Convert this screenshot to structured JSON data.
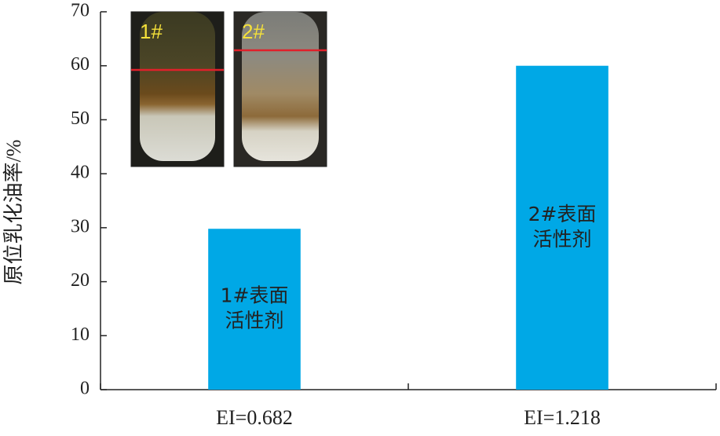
{
  "chart_data": {
    "type": "bar",
    "y_label": "原位乳化油率/%",
    "categories": [
      "EI=0.682",
      "EI=1.218"
    ],
    "values": [
      29.8,
      60
    ],
    "bar_labels": [
      [
        "1#表面",
        "活性剂"
      ],
      [
        "2#表面",
        "活性剂"
      ]
    ],
    "color": "#00a8e6",
    "ylim": [
      0,
      70
    ],
    "yticks": [
      0,
      10,
      20,
      30,
      40,
      50,
      60,
      70
    ],
    "insets": [
      {
        "label": "1#"
      },
      {
        "label": "2#"
      }
    ]
  }
}
